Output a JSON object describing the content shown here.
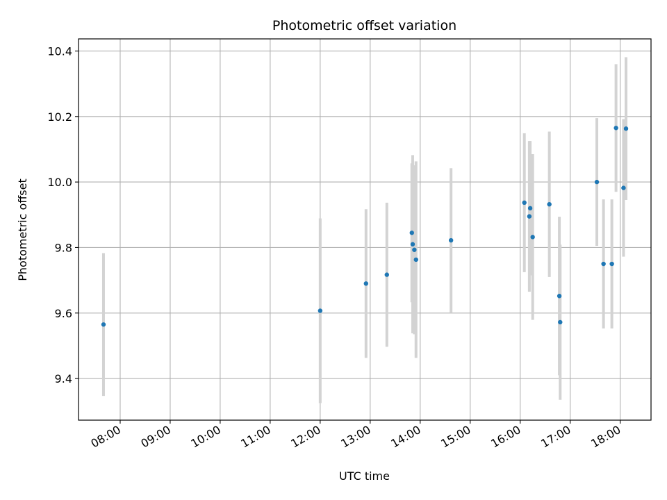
{
  "chart_data": {
    "type": "scatter",
    "title": "Photometric offset variation",
    "xlabel": "UTC time",
    "ylabel": "Photometric offset",
    "x_ticks": [
      "08:00",
      "09:00",
      "10:00",
      "11:00",
      "12:00",
      "13:00",
      "14:00",
      "15:00",
      "16:00",
      "17:00",
      "18:00"
    ],
    "y_ticks": [
      9.4,
      9.6,
      9.8,
      10.0,
      10.2,
      10.4
    ],
    "y_tick_labels": [
      "9.4",
      "9.6",
      "9.8",
      "10.0",
      "10.2",
      "10.4"
    ],
    "xlim": [
      "07:10",
      "18:37"
    ],
    "ylim": [
      9.273,
      10.437
    ],
    "grid": true,
    "point_color": "#1f77b4",
    "errorbar_color": "#d3d3d3",
    "points": [
      {
        "x": "07:40",
        "y": 9.565,
        "err": 0.218
      },
      {
        "x": "12:00",
        "y": 9.607,
        "err": 0.282
      },
      {
        "x": "12:55",
        "y": 9.69,
        "err": 0.227
      },
      {
        "x": "13:20",
        "y": 9.717,
        "err": 0.22
      },
      {
        "x": "13:50",
        "y": 9.845,
        "err": 0.212
      },
      {
        "x": "13:51",
        "y": 9.81,
        "err": 0.272
      },
      {
        "x": "13:53",
        "y": 9.793,
        "err": 0.258
      },
      {
        "x": "13:55",
        "y": 9.763,
        "err": 0.3
      },
      {
        "x": "14:37",
        "y": 9.822,
        "err": 0.22
      },
      {
        "x": "16:05",
        "y": 9.937,
        "err": 0.212
      },
      {
        "x": "16:11",
        "y": 9.895,
        "err": 0.23
      },
      {
        "x": "16:12",
        "y": 9.92,
        "err": 0.205
      },
      {
        "x": "16:15",
        "y": 9.832,
        "err": 0.253
      },
      {
        "x": "16:35",
        "y": 9.932,
        "err": 0.222
      },
      {
        "x": "16:47",
        "y": 9.652,
        "err": 0.242
      },
      {
        "x": "16:48",
        "y": 9.572,
        "err": 0.237
      },
      {
        "x": "17:32",
        "y": 10.0,
        "err": 0.195
      },
      {
        "x": "17:40",
        "y": 9.75,
        "err": 0.197
      },
      {
        "x": "17:50",
        "y": 9.75,
        "err": 0.197
      },
      {
        "x": "17:55",
        "y": 10.165,
        "err": 0.195
      },
      {
        "x": "18:04",
        "y": 9.982,
        "err": 0.21
      },
      {
        "x": "18:07",
        "y": 10.163,
        "err": 0.218
      }
    ]
  }
}
